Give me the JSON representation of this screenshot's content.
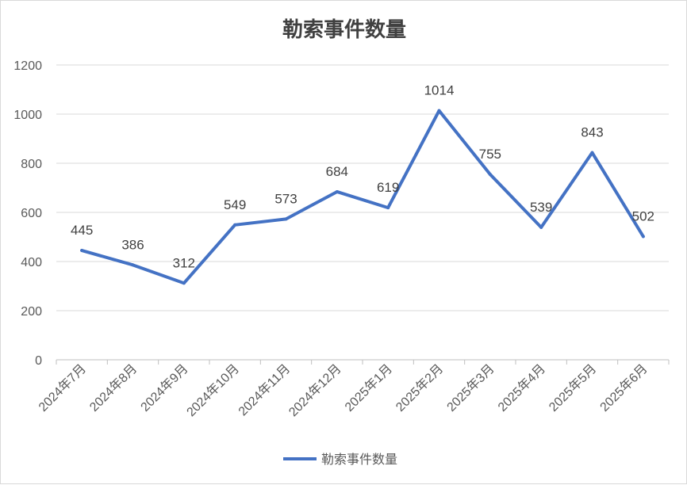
{
  "chart_data": {
    "type": "line",
    "title": "勒索事件数量",
    "categories": [
      "2024年7月",
      "2024年8月",
      "2024年9月",
      "2024年10月",
      "2024年11月",
      "2024年12月",
      "2025年1月",
      "2025年2月",
      "2025年3月",
      "2025年4月",
      "2025年5月",
      "2025年6月"
    ],
    "series": [
      {
        "name": "勒索事件数量",
        "values": [
          445,
          386,
          312,
          549,
          573,
          684,
          619,
          1014,
          755,
          539,
          843,
          502
        ],
        "color": "#4472c4"
      }
    ],
    "ylim": [
      0,
      1200
    ],
    "yticks": [
      0,
      200,
      400,
      600,
      800,
      1000,
      1200
    ],
    "grid": true,
    "legend": "bottom",
    "data_labels": true
  }
}
